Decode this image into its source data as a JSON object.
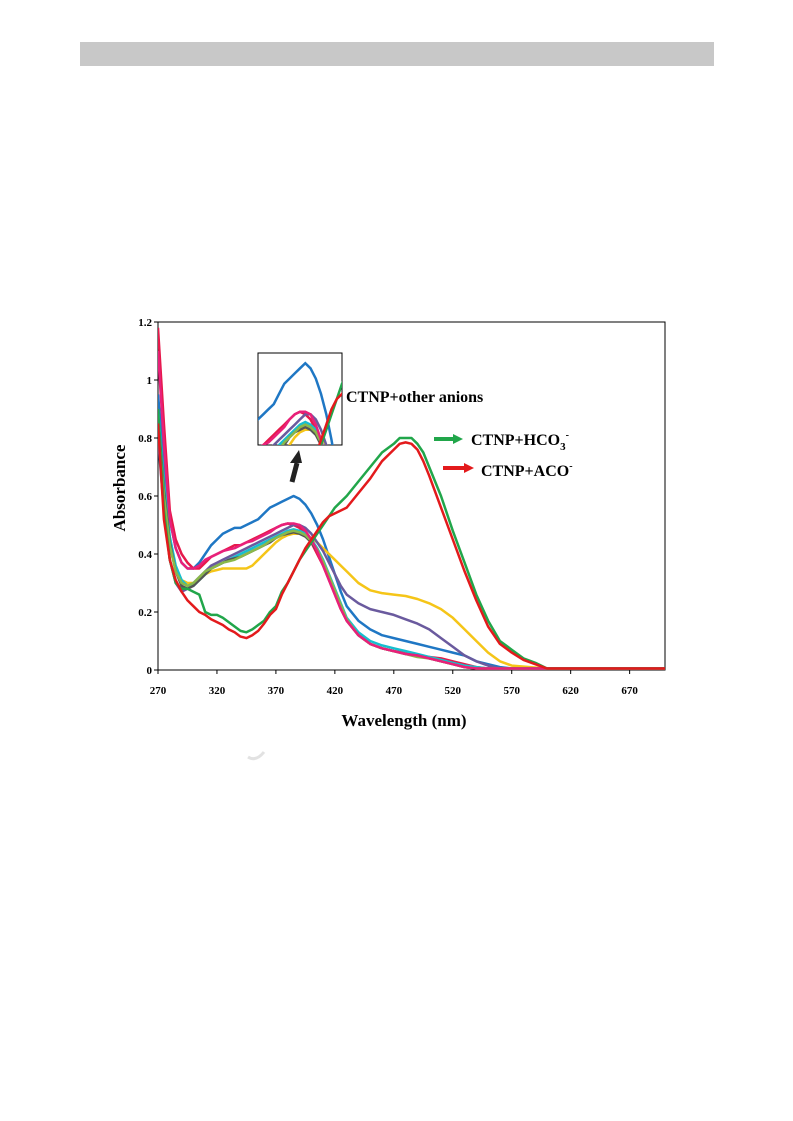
{
  "header_bar": {},
  "chart_data": {
    "type": "line",
    "title": "",
    "xlabel": "Wavelength (nm)",
    "ylabel": "Absorbance",
    "xlim": [
      270,
      700
    ],
    "ylim": [
      0,
      1.2
    ],
    "x_ticks": [
      "270",
      "320",
      "370",
      "420",
      "470",
      "520",
      "570",
      "620",
      "670"
    ],
    "y_ticks": [
      "0",
      "0.2",
      "0.4",
      "0.6",
      "0.8",
      "1",
      "1.2"
    ],
    "grid": false,
    "annotations": {
      "other_anions": "CTNP+other anions",
      "hco3_main": "CTNP+HCO",
      "hco3_sub": "3",
      "hco3_sup": "-",
      "aco_main": "CTNP+ACO",
      "aco_sup": "-"
    },
    "inset": {
      "xlim": [
        340,
        420
      ],
      "ylim": [
        0.44,
        0.62
      ]
    },
    "series": [
      {
        "color": "#1f77c4",
        "x": [
          270,
          275,
          280,
          285,
          290,
          295,
          300,
          305,
          310,
          315,
          320,
          325,
          330,
          335,
          340,
          345,
          350,
          355,
          360,
          365,
          370,
          375,
          380,
          385,
          390,
          395,
          400,
          405,
          410,
          415,
          420,
          425,
          430,
          440,
          450,
          460,
          470,
          480,
          490,
          500,
          510,
          520,
          530,
          540,
          550,
          560,
          570,
          600,
          650,
          700
        ],
        "y": [
          0.95,
          0.72,
          0.52,
          0.42,
          0.37,
          0.35,
          0.35,
          0.37,
          0.4,
          0.43,
          0.45,
          0.47,
          0.48,
          0.49,
          0.49,
          0.5,
          0.51,
          0.52,
          0.54,
          0.56,
          0.57,
          0.58,
          0.59,
          0.6,
          0.59,
          0.57,
          0.54,
          0.5,
          0.45,
          0.39,
          0.33,
          0.27,
          0.22,
          0.17,
          0.14,
          0.12,
          0.11,
          0.1,
          0.09,
          0.08,
          0.07,
          0.06,
          0.05,
          0.03,
          0.02,
          0.01,
          0.005,
          0.005,
          0.005,
          0.005
        ]
      },
      {
        "color": "#e6194b",
        "x": [
          270,
          275,
          280,
          285,
          290,
          295,
          300,
          305,
          310,
          315,
          320,
          325,
          330,
          335,
          340,
          345,
          350,
          355,
          360,
          365,
          370,
          375,
          380,
          385,
          390,
          395,
          400,
          405,
          410,
          415,
          420,
          425,
          430,
          440,
          450,
          460,
          470,
          480,
          490,
          500,
          510,
          520,
          530,
          540,
          550,
          560,
          570,
          600,
          650,
          700
        ],
        "y": [
          1.18,
          0.85,
          0.55,
          0.45,
          0.4,
          0.37,
          0.35,
          0.35,
          0.37,
          0.39,
          0.4,
          0.41,
          0.42,
          0.43,
          0.43,
          0.44,
          0.45,
          0.46,
          0.47,
          0.48,
          0.49,
          0.5,
          0.505,
          0.5,
          0.49,
          0.47,
          0.44,
          0.4,
          0.36,
          0.31,
          0.26,
          0.21,
          0.17,
          0.12,
          0.09,
          0.075,
          0.065,
          0.06,
          0.05,
          0.045,
          0.04,
          0.03,
          0.02,
          0.01,
          0.005,
          0.005,
          0.005,
          0.005,
          0.005,
          0.005
        ]
      },
      {
        "color": "#f5c518",
        "x": [
          270,
          275,
          280,
          285,
          290,
          295,
          300,
          305,
          310,
          315,
          320,
          325,
          330,
          335,
          340,
          345,
          350,
          355,
          360,
          365,
          370,
          375,
          380,
          385,
          390,
          395,
          400,
          405,
          410,
          415,
          420,
          425,
          430,
          440,
          450,
          460,
          470,
          480,
          490,
          500,
          510,
          520,
          530,
          540,
          550,
          560,
          570,
          600,
          650,
          700
        ],
        "y": [
          0.85,
          0.6,
          0.42,
          0.35,
          0.31,
          0.3,
          0.3,
          0.31,
          0.33,
          0.34,
          0.345,
          0.35,
          0.35,
          0.35,
          0.35,
          0.35,
          0.36,
          0.38,
          0.4,
          0.42,
          0.44,
          0.455,
          0.465,
          0.47,
          0.47,
          0.465,
          0.455,
          0.44,
          0.42,
          0.4,
          0.38,
          0.36,
          0.34,
          0.3,
          0.275,
          0.265,
          0.26,
          0.255,
          0.245,
          0.23,
          0.21,
          0.18,
          0.14,
          0.1,
          0.06,
          0.03,
          0.015,
          0.005,
          0.005,
          0.005
        ]
      },
      {
        "color": "#6a5a9e",
        "x": [
          270,
          275,
          280,
          285,
          290,
          295,
          300,
          305,
          310,
          315,
          320,
          325,
          330,
          335,
          340,
          345,
          350,
          355,
          360,
          365,
          370,
          375,
          380,
          385,
          390,
          395,
          400,
          405,
          410,
          415,
          420,
          425,
          430,
          440,
          450,
          460,
          470,
          480,
          490,
          500,
          510,
          520,
          530,
          540,
          550,
          560,
          570,
          600,
          650,
          700
        ],
        "y": [
          0.8,
          0.55,
          0.38,
          0.3,
          0.27,
          0.28,
          0.3,
          0.32,
          0.34,
          0.36,
          0.37,
          0.38,
          0.39,
          0.4,
          0.41,
          0.42,
          0.43,
          0.44,
          0.45,
          0.46,
          0.47,
          0.48,
          0.49,
          0.5,
          0.5,
          0.49,
          0.47,
          0.44,
          0.41,
          0.37,
          0.33,
          0.29,
          0.26,
          0.23,
          0.21,
          0.2,
          0.19,
          0.175,
          0.16,
          0.14,
          0.11,
          0.08,
          0.05,
          0.03,
          0.015,
          0.005,
          0.005,
          0.005,
          0.005,
          0.005
        ]
      },
      {
        "color": "#17becf",
        "x": [
          270,
          275,
          280,
          285,
          290,
          295,
          300,
          305,
          310,
          315,
          320,
          325,
          330,
          335,
          340,
          345,
          350,
          355,
          360,
          365,
          370,
          375,
          380,
          385,
          390,
          395,
          400,
          405,
          410,
          415,
          420,
          425,
          430,
          440,
          450,
          460,
          470,
          480,
          490,
          500,
          510,
          520,
          530,
          540,
          550,
          560,
          570,
          600,
          650,
          700
        ],
        "y": [
          0.9,
          0.65,
          0.46,
          0.36,
          0.31,
          0.29,
          0.29,
          0.31,
          0.33,
          0.35,
          0.36,
          0.37,
          0.38,
          0.39,
          0.4,
          0.41,
          0.42,
          0.43,
          0.44,
          0.45,
          0.46,
          0.47,
          0.48,
          0.485,
          0.48,
          0.47,
          0.45,
          0.42,
          0.38,
          0.33,
          0.28,
          0.23,
          0.18,
          0.13,
          0.1,
          0.085,
          0.075,
          0.065,
          0.055,
          0.045,
          0.035,
          0.025,
          0.015,
          0.01,
          0.005,
          0.005,
          0.005,
          0.005,
          0.005,
          0.005
        ]
      },
      {
        "color": "#555555",
        "x": [
          270,
          275,
          280,
          285,
          290,
          295,
          300,
          305,
          310,
          315,
          320,
          325,
          330,
          335,
          340,
          345,
          350,
          355,
          360,
          365,
          370,
          375,
          380,
          385,
          390,
          395,
          400,
          405,
          410,
          415,
          420,
          425,
          430,
          440,
          450,
          460,
          470,
          480,
          490,
          500,
          510,
          520,
          530,
          540,
          550,
          560,
          570,
          600,
          650,
          700
        ],
        "y": [
          0.88,
          0.62,
          0.44,
          0.34,
          0.29,
          0.28,
          0.29,
          0.31,
          0.33,
          0.35,
          0.36,
          0.37,
          0.38,
          0.385,
          0.39,
          0.4,
          0.41,
          0.42,
          0.43,
          0.44,
          0.455,
          0.465,
          0.47,
          0.475,
          0.47,
          0.46,
          0.44,
          0.41,
          0.37,
          0.32,
          0.27,
          0.22,
          0.17,
          0.12,
          0.09,
          0.075,
          0.065,
          0.055,
          0.05,
          0.04,
          0.03,
          0.02,
          0.01,
          0.005,
          0.005,
          0.005,
          0.005,
          0.005,
          0.005,
          0.005
        ]
      },
      {
        "color": "#8ab84a",
        "x": [
          270,
          275,
          280,
          285,
          290,
          295,
          300,
          305,
          310,
          315,
          320,
          325,
          330,
          335,
          340,
          345,
          350,
          355,
          360,
          365,
          370,
          375,
          380,
          385,
          390,
          395,
          400,
          405,
          410,
          415,
          420,
          425,
          430,
          440,
          450,
          460,
          470,
          480,
          490,
          500,
          510,
          520,
          530,
          540,
          550,
          560,
          570,
          600,
          650,
          700
        ],
        "y": [
          0.86,
          0.6,
          0.43,
          0.34,
          0.3,
          0.29,
          0.3,
          0.32,
          0.34,
          0.35,
          0.36,
          0.37,
          0.375,
          0.38,
          0.39,
          0.4,
          0.41,
          0.42,
          0.43,
          0.445,
          0.455,
          0.465,
          0.475,
          0.48,
          0.475,
          0.465,
          0.445,
          0.415,
          0.375,
          0.325,
          0.275,
          0.225,
          0.175,
          0.12,
          0.09,
          0.075,
          0.065,
          0.055,
          0.045,
          0.04,
          0.03,
          0.02,
          0.01,
          0.005,
          0.005,
          0.005,
          0.005,
          0.005,
          0.005,
          0.005
        ]
      },
      {
        "color": "#e8207a",
        "x": [
          270,
          275,
          280,
          285,
          290,
          295,
          300,
          305,
          310,
          315,
          320,
          325,
          330,
          335,
          340,
          345,
          350,
          355,
          360,
          365,
          370,
          375,
          380,
          385,
          390,
          395,
          400,
          405,
          410,
          415,
          420,
          425,
          430,
          440,
          450,
          460,
          470,
          480,
          490,
          500,
          510,
          520,
          530,
          540,
          550,
          560,
          570,
          600,
          650,
          700
        ],
        "y": [
          1.1,
          0.78,
          0.52,
          0.42,
          0.37,
          0.35,
          0.35,
          0.36,
          0.38,
          0.39,
          0.4,
          0.41,
          0.415,
          0.42,
          0.43,
          0.44,
          0.445,
          0.455,
          0.465,
          0.475,
          0.49,
          0.5,
          0.505,
          0.505,
          0.5,
          0.48,
          0.45,
          0.41,
          0.36,
          0.31,
          0.26,
          0.21,
          0.17,
          0.12,
          0.09,
          0.075,
          0.065,
          0.055,
          0.05,
          0.04,
          0.03,
          0.02,
          0.01,
          0.005,
          0.005,
          0.005,
          0.005,
          0.005,
          0.005,
          0.005
        ]
      },
      {
        "color": "#21a64a",
        "x": [
          270,
          275,
          280,
          285,
          290,
          295,
          300,
          305,
          310,
          315,
          320,
          325,
          330,
          335,
          340,
          345,
          350,
          355,
          360,
          365,
          370,
          375,
          380,
          385,
          390,
          395,
          400,
          405,
          410,
          415,
          420,
          425,
          430,
          440,
          450,
          460,
          470,
          475,
          480,
          485,
          490,
          495,
          500,
          510,
          520,
          530,
          540,
          550,
          560,
          570,
          580,
          590,
          600,
          610,
          650,
          700
        ],
        "y": [
          0.9,
          0.55,
          0.38,
          0.3,
          0.28,
          0.28,
          0.27,
          0.26,
          0.2,
          0.19,
          0.19,
          0.18,
          0.165,
          0.15,
          0.135,
          0.13,
          0.14,
          0.155,
          0.17,
          0.2,
          0.22,
          0.27,
          0.3,
          0.34,
          0.38,
          0.41,
          0.44,
          0.47,
          0.5,
          0.53,
          0.56,
          0.58,
          0.6,
          0.65,
          0.7,
          0.75,
          0.78,
          0.8,
          0.8,
          0.8,
          0.78,
          0.75,
          0.7,
          0.6,
          0.48,
          0.37,
          0.26,
          0.17,
          0.1,
          0.07,
          0.04,
          0.025,
          0.005,
          0.005,
          0.005,
          0.005
        ]
      },
      {
        "color": "#e31a1c",
        "x": [
          270,
          275,
          280,
          285,
          290,
          295,
          300,
          305,
          310,
          315,
          320,
          325,
          330,
          335,
          340,
          345,
          350,
          355,
          360,
          365,
          370,
          375,
          380,
          385,
          390,
          395,
          400,
          405,
          410,
          415,
          420,
          425,
          430,
          440,
          450,
          460,
          470,
          475,
          480,
          485,
          490,
          495,
          500,
          510,
          520,
          530,
          540,
          550,
          560,
          570,
          580,
          590,
          600,
          610,
          650,
          700
        ],
        "y": [
          0.85,
          0.52,
          0.38,
          0.31,
          0.27,
          0.24,
          0.22,
          0.2,
          0.19,
          0.175,
          0.165,
          0.155,
          0.14,
          0.13,
          0.115,
          0.11,
          0.12,
          0.135,
          0.16,
          0.19,
          0.21,
          0.26,
          0.3,
          0.34,
          0.38,
          0.42,
          0.45,
          0.48,
          0.51,
          0.53,
          0.54,
          0.55,
          0.56,
          0.61,
          0.66,
          0.72,
          0.76,
          0.78,
          0.785,
          0.78,
          0.76,
          0.72,
          0.67,
          0.56,
          0.45,
          0.34,
          0.24,
          0.15,
          0.09,
          0.06,
          0.035,
          0.02,
          0.005,
          0.005,
          0.005,
          0.005
        ]
      }
    ]
  }
}
